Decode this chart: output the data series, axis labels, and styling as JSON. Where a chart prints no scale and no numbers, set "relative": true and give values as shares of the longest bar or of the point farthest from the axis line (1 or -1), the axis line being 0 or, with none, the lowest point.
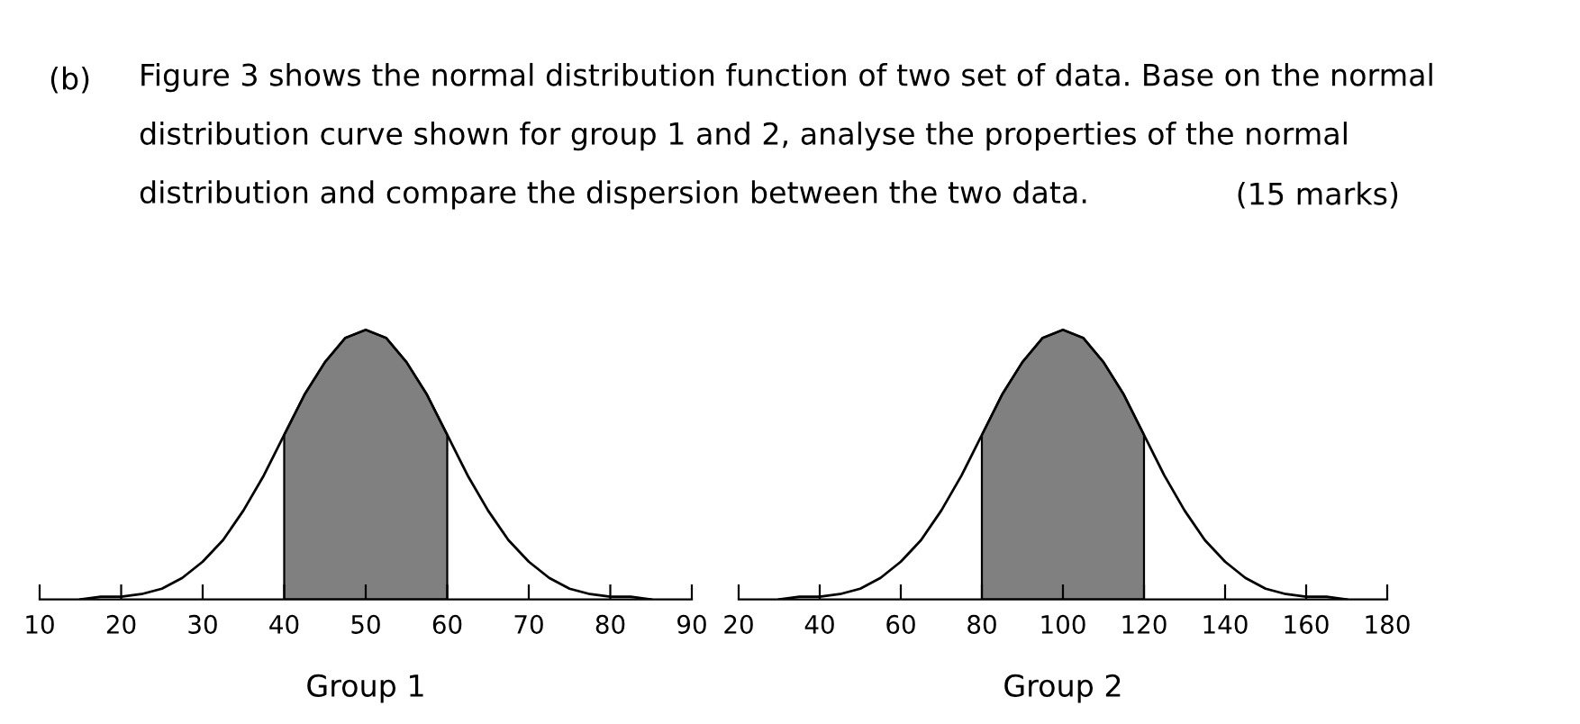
{
  "chart_data": [
    {
      "type": "line",
      "relative": true,
      "xlabel": "Group 1",
      "annotations": [
        "(b)",
        "Figure 3 shows the normal distribution function of two set of data. Base on the normal\ndistribution curve shown for group 1 and 2, analyse the properties of the normal\ndistribution and compare the dispersion between the two data.",
        "(15 marks)"
      ],
      "xlim": [
        10,
        90
      ],
      "xticks": [
        10,
        20,
        30,
        40,
        50,
        60,
        70,
        80,
        90
      ],
      "grid": false,
      "marker": "none",
      "line_style": "solid",
      "series": [
        {
          "color": "#000000",
          "x": [
            15,
            17.5,
            20,
            22.5,
            25,
            27.5,
            30,
            32.5,
            35,
            37.5,
            40,
            42.5,
            45,
            47.5,
            50,
            52.5,
            55,
            57.5,
            60,
            62.5,
            65,
            67.5,
            70,
            72.5,
            75,
            77.5,
            80,
            82.5,
            85
          ],
          "values": [
            0.0,
            0.01,
            0.01,
            0.02,
            0.04,
            0.08,
            0.14,
            0.22,
            0.33,
            0.46,
            0.61,
            0.76,
            0.88,
            0.97,
            1,
            0.97,
            0.88,
            0.76,
            0.61,
            0.46,
            0.33,
            0.22,
            0.14,
            0.08,
            0.04,
            0.02,
            0.01,
            0.01,
            0.0
          ]
        }
      ],
      "bands": [
        {
          "axis": "x",
          "from": 40,
          "to": 60,
          "color": "#808080"
        }
      ]
    },
    {
      "type": "line",
      "relative": true,
      "xlabel": "Group 2",
      "xlim": [
        20,
        180
      ],
      "xticks": [
        20,
        40,
        60,
        80,
        100,
        120,
        140,
        160,
        180
      ],
      "grid": false,
      "marker": "none",
      "line_style": "solid",
      "series": [
        {
          "color": "#000000",
          "x": [
            30,
            35,
            40,
            45,
            50,
            55,
            60,
            65,
            70,
            75,
            80,
            85,
            90,
            95,
            100,
            105,
            110,
            115,
            120,
            125,
            130,
            135,
            140,
            145,
            150,
            155,
            160,
            165,
            170
          ],
          "values": [
            0.0,
            0.01,
            0.01,
            0.02,
            0.04,
            0.08,
            0.14,
            0.22,
            0.33,
            0.46,
            0.61,
            0.76,
            0.88,
            0.97,
            1,
            0.97,
            0.88,
            0.76,
            0.61,
            0.46,
            0.33,
            0.22,
            0.14,
            0.08,
            0.04,
            0.02,
            0.01,
            0.01,
            0.0
          ]
        }
      ],
      "bands": [
        {
          "axis": "x",
          "from": 80,
          "to": 120,
          "color": "#808080"
        }
      ]
    }
  ]
}
